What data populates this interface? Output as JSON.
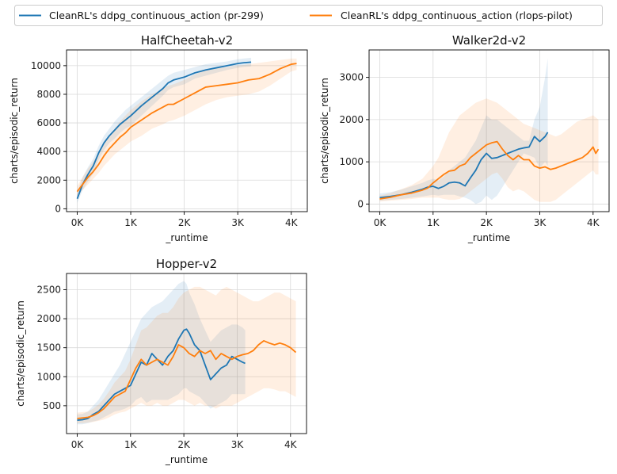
{
  "legend": {
    "placement": "top-center",
    "entries": [
      {
        "name": "CleanRL's ddpg_continuous_action (pr-299)",
        "color": "#1f77b4"
      },
      {
        "name": "CleanRL's ddpg_continuous_action (rlops-pilot)",
        "color": "#ff7f0e"
      }
    ]
  },
  "chart_data": [
    {
      "type": "line",
      "title": "HalfCheetah-v2",
      "xlabel": "_runtime",
      "ylabel": "charts/episodic_return",
      "grid": true,
      "xlim": [
        -200,
        4300
      ],
      "ylim": [
        -200,
        11100
      ],
      "xticks": [
        0,
        1000,
        2000,
        3000,
        4000
      ],
      "xtick_labels": [
        "0K",
        "1K",
        "2K",
        "3K",
        "4K"
      ],
      "yticks": [
        0,
        2000,
        4000,
        6000,
        8000,
        10000
      ],
      "ytick_labels": [
        "0",
        "2000",
        "4000",
        "6000",
        "8000",
        "10000"
      ],
      "series": [
        {
          "name": "CleanRL's ddpg_continuous_action (pr-299)",
          "color": "#1f77b4",
          "x": [
            0,
            100,
            200,
            300,
            400,
            500,
            600,
            700,
            800,
            900,
            1000,
            1200,
            1400,
            1600,
            1700,
            1800,
            2000,
            2200,
            2400,
            2600,
            2800,
            3000,
            3100,
            3250
          ],
          "y": [
            700,
            1700,
            2400,
            3000,
            3900,
            4600,
            5100,
            5500,
            5900,
            6200,
            6500,
            7200,
            7800,
            8400,
            8800,
            9000,
            9200,
            9500,
            9700,
            9850,
            10000,
            10150,
            10200,
            10250
          ],
          "upper": [
            1200,
            2200,
            2900,
            3500,
            4400,
            5100,
            5600,
            6100,
            6500,
            6900,
            7200,
            7800,
            8400,
            9000,
            9300,
            9500,
            9700,
            9900,
            10100,
            10200,
            10300,
            10450,
            10500,
            10550
          ],
          "lower": [
            400,
            1300,
            1900,
            2500,
            3400,
            4100,
            4600,
            4900,
            5300,
            5600,
            5800,
            6500,
            7200,
            7900,
            8300,
            8500,
            8700,
            9100,
            9300,
            9500,
            9700,
            9850,
            9900,
            9950
          ]
        },
        {
          "name": "CleanRL's ddpg_continuous_action (rlops-pilot)",
          "color": "#ff7f0e",
          "x": [
            0,
            100,
            200,
            300,
            400,
            500,
            600,
            700,
            800,
            900,
            1000,
            1200,
            1400,
            1600,
            1700,
            1800,
            2000,
            2200,
            2400,
            2600,
            2800,
            3000,
            3200,
            3400,
            3600,
            3800,
            4000,
            4100
          ],
          "y": [
            1200,
            1700,
            2200,
            2600,
            3100,
            3700,
            4200,
            4600,
            5000,
            5300,
            5700,
            6200,
            6700,
            7100,
            7300,
            7300,
            7700,
            8100,
            8500,
            8600,
            8700,
            8800,
            9000,
            9100,
            9400,
            9800,
            10100,
            10150
          ],
          "upper": [
            1600,
            2200,
            2800,
            3300,
            3900,
            4500,
            5100,
            5600,
            6100,
            6500,
            6900,
            7500,
            8000,
            8400,
            8600,
            8700,
            9000,
            9400,
            9700,
            9800,
            9900,
            10000,
            10100,
            10200,
            10300,
            10400,
            10500,
            10500
          ],
          "lower": [
            900,
            1300,
            1700,
            2100,
            2500,
            3000,
            3400,
            3800,
            4100,
            4400,
            4700,
            5100,
            5600,
            5900,
            6100,
            6200,
            6500,
            6900,
            7300,
            7600,
            7800,
            7900,
            8000,
            8200,
            8600,
            9100,
            9600,
            9700
          ]
        }
      ]
    },
    {
      "type": "line",
      "title": "Walker2d-v2",
      "xlabel": "_runtime",
      "ylabel": "charts/episodic_return",
      "grid": true,
      "xlim": [
        -200,
        4300
      ],
      "ylim": [
        -180,
        3650
      ],
      "xticks": [
        0,
        1000,
        2000,
        3000,
        4000
      ],
      "xtick_labels": [
        "0K",
        "1K",
        "2K",
        "3K",
        "4K"
      ],
      "yticks": [
        0,
        1000,
        2000,
        3000
      ],
      "ytick_labels": [
        "0",
        "1000",
        "2000",
        "3000"
      ],
      "series": [
        {
          "name": "CleanRL's ddpg_continuous_action (pr-299)",
          "color": "#1f77b4",
          "x": [
            0,
            200,
            400,
            600,
            800,
            900,
            1000,
            1100,
            1200,
            1300,
            1400,
            1500,
            1600,
            1700,
            1800,
            1900,
            2000,
            2100,
            2200,
            2300,
            2400,
            2500,
            2600,
            2700,
            2800,
            2900,
            3000,
            3100,
            3150
          ],
          "y": [
            150,
            180,
            220,
            280,
            350,
            400,
            420,
            370,
            420,
            500,
            520,
            500,
            430,
            620,
            800,
            1050,
            1200,
            1080,
            1100,
            1150,
            1200,
            1250,
            1300,
            1330,
            1350,
            1600,
            1480,
            1600,
            1700
          ],
          "upper": [
            250,
            280,
            340,
            420,
            500,
            560,
            600,
            560,
            650,
            800,
            900,
            1000,
            1100,
            1300,
            1500,
            1800,
            2100,
            2000,
            2000,
            1900,
            1800,
            1700,
            1600,
            1500,
            1500,
            2000,
            2300,
            3000,
            3450
          ],
          "lower": [
            80,
            100,
            120,
            150,
            180,
            200,
            220,
            200,
            220,
            220,
            220,
            180,
            150,
            100,
            0,
            50,
            200,
            100,
            200,
            400,
            600,
            800,
            1000,
            1200,
            1150,
            1100,
            850,
            1000,
            900
          ]
        },
        {
          "name": "CleanRL's ddpg_continuous_action (rlops-pilot)",
          "color": "#ff7f0e",
          "x": [
            0,
            200,
            400,
            600,
            800,
            900,
            1000,
            1100,
            1200,
            1300,
            1400,
            1500,
            1600,
            1700,
            1800,
            1900,
            2000,
            2100,
            2200,
            2300,
            2400,
            2500,
            2600,
            2700,
            2800,
            2900,
            3000,
            3100,
            3200,
            3300,
            3400,
            3500,
            3600,
            3700,
            3800,
            3900,
            4000,
            4050,
            4100
          ],
          "y": [
            120,
            160,
            220,
            260,
            330,
            380,
            500,
            600,
            700,
            780,
            800,
            900,
            950,
            1100,
            1200,
            1300,
            1400,
            1450,
            1480,
            1300,
            1150,
            1050,
            1150,
            1050,
            1050,
            900,
            850,
            880,
            820,
            850,
            900,
            950,
            1000,
            1050,
            1100,
            1200,
            1350,
            1200,
            1300
          ],
          "upper": [
            200,
            260,
            350,
            450,
            600,
            750,
            900,
            1100,
            1400,
            1700,
            1900,
            2100,
            2200,
            2300,
            2400,
            2450,
            2500,
            2450,
            2400,
            2300,
            2200,
            2100,
            2000,
            1900,
            1850,
            1800,
            1750,
            1700,
            1650,
            1600,
            1650,
            1750,
            1850,
            1950,
            2000,
            2050,
            2100,
            2050,
            2000
          ],
          "lower": [
            60,
            80,
            100,
            120,
            150,
            150,
            150,
            150,
            120,
            100,
            100,
            120,
            200,
            300,
            400,
            500,
            600,
            700,
            750,
            600,
            400,
            300,
            350,
            300,
            200,
            100,
            50,
            50,
            50,
            100,
            200,
            300,
            400,
            500,
            600,
            700,
            800,
            700,
            700
          ]
        }
      ]
    },
    {
      "type": "line",
      "title": "Hopper-v2",
      "xlabel": "_runtime",
      "ylabel": "charts/episodic_return",
      "grid": true,
      "xlim": [
        -200,
        4300
      ],
      "ylim": [
        20,
        2780
      ],
      "xticks": [
        0,
        1000,
        2000,
        3000,
        4000
      ],
      "xtick_labels": [
        "0K",
        "1K",
        "2K",
        "3K",
        "4K"
      ],
      "yticks": [
        500,
        1000,
        1500,
        2000,
        2500
      ],
      "ytick_labels": [
        "500",
        "1000",
        "1500",
        "2000",
        "2500"
      ],
      "series": [
        {
          "name": "CleanRL's ddpg_continuous_action (pr-299)",
          "color": "#1f77b4",
          "x": [
            0,
            100,
            200,
            300,
            400,
            500,
            600,
            700,
            800,
            900,
            1000,
            1100,
            1200,
            1300,
            1400,
            1500,
            1600,
            1700,
            1800,
            1900,
            2000,
            2050,
            2100,
            2200,
            2300,
            2400,
            2500,
            2600,
            2700,
            2800,
            2900,
            3000,
            3100,
            3150
          ],
          "y": [
            250,
            260,
            280,
            350,
            400,
            500,
            600,
            700,
            750,
            800,
            850,
            1050,
            1250,
            1200,
            1400,
            1300,
            1200,
            1350,
            1450,
            1650,
            1800,
            1820,
            1750,
            1550,
            1450,
            1200,
            950,
            1050,
            1150,
            1200,
            1350,
            1300,
            1250,
            1230
          ],
          "upper": [
            350,
            360,
            400,
            500,
            600,
            750,
            900,
            1050,
            1200,
            1400,
            1600,
            1800,
            2000,
            2100,
            2200,
            2250,
            2300,
            2400,
            2500,
            2600,
            2650,
            2600,
            2450,
            2250,
            2000,
            1800,
            1600,
            1700,
            1800,
            1850,
            1900,
            1900,
            1850,
            1800
          ],
          "lower": [
            180,
            180,
            200,
            230,
            250,
            300,
            350,
            400,
            420,
            450,
            500,
            600,
            650,
            550,
            600,
            600,
            600,
            600,
            650,
            700,
            800,
            800,
            750,
            700,
            650,
            550,
            450,
            500,
            550,
            600,
            700,
            700,
            700,
            700
          ]
        },
        {
          "name": "CleanRL's ddpg_continuous_action (rlops-pilot)",
          "color": "#ff7f0e",
          "x": [
            0,
            100,
            200,
            300,
            400,
            500,
            600,
            700,
            800,
            900,
            1000,
            1100,
            1200,
            1300,
            1400,
            1500,
            1600,
            1700,
            1800,
            1900,
            2000,
            2100,
            2200,
            2300,
            2400,
            2500,
            2600,
            2700,
            2800,
            2900,
            3000,
            3100,
            3200,
            3300,
            3400,
            3500,
            3600,
            3700,
            3800,
            3900,
            4000,
            4100
          ],
          "y": [
            280,
            290,
            300,
            330,
            380,
            450,
            550,
            650,
            700,
            750,
            950,
            1150,
            1300,
            1200,
            1250,
            1300,
            1250,
            1200,
            1350,
            1550,
            1500,
            1400,
            1350,
            1450,
            1400,
            1450,
            1300,
            1400,
            1350,
            1300,
            1350,
            1380,
            1400,
            1450,
            1550,
            1620,
            1580,
            1550,
            1580,
            1550,
            1500,
            1420
          ],
          "upper": [
            380,
            390,
            400,
            450,
            520,
            620,
            750,
            900,
            1000,
            1100,
            1300,
            1550,
            1800,
            1850,
            1950,
            2050,
            2100,
            2100,
            2200,
            2350,
            2450,
            2500,
            2550,
            2550,
            2500,
            2450,
            2400,
            2500,
            2550,
            2500,
            2450,
            2400,
            2350,
            2300,
            2300,
            2350,
            2400,
            2450,
            2450,
            2400,
            2350,
            2300
          ],
          "lower": [
            200,
            200,
            210,
            220,
            240,
            260,
            300,
            350,
            380,
            400,
            450,
            500,
            550,
            500,
            500,
            550,
            500,
            500,
            550,
            600,
            600,
            550,
            500,
            550,
            500,
            500,
            450,
            500,
            500,
            500,
            550,
            600,
            650,
            700,
            750,
            800,
            800,
            780,
            750,
            750,
            700,
            650
          ]
        }
      ]
    }
  ]
}
